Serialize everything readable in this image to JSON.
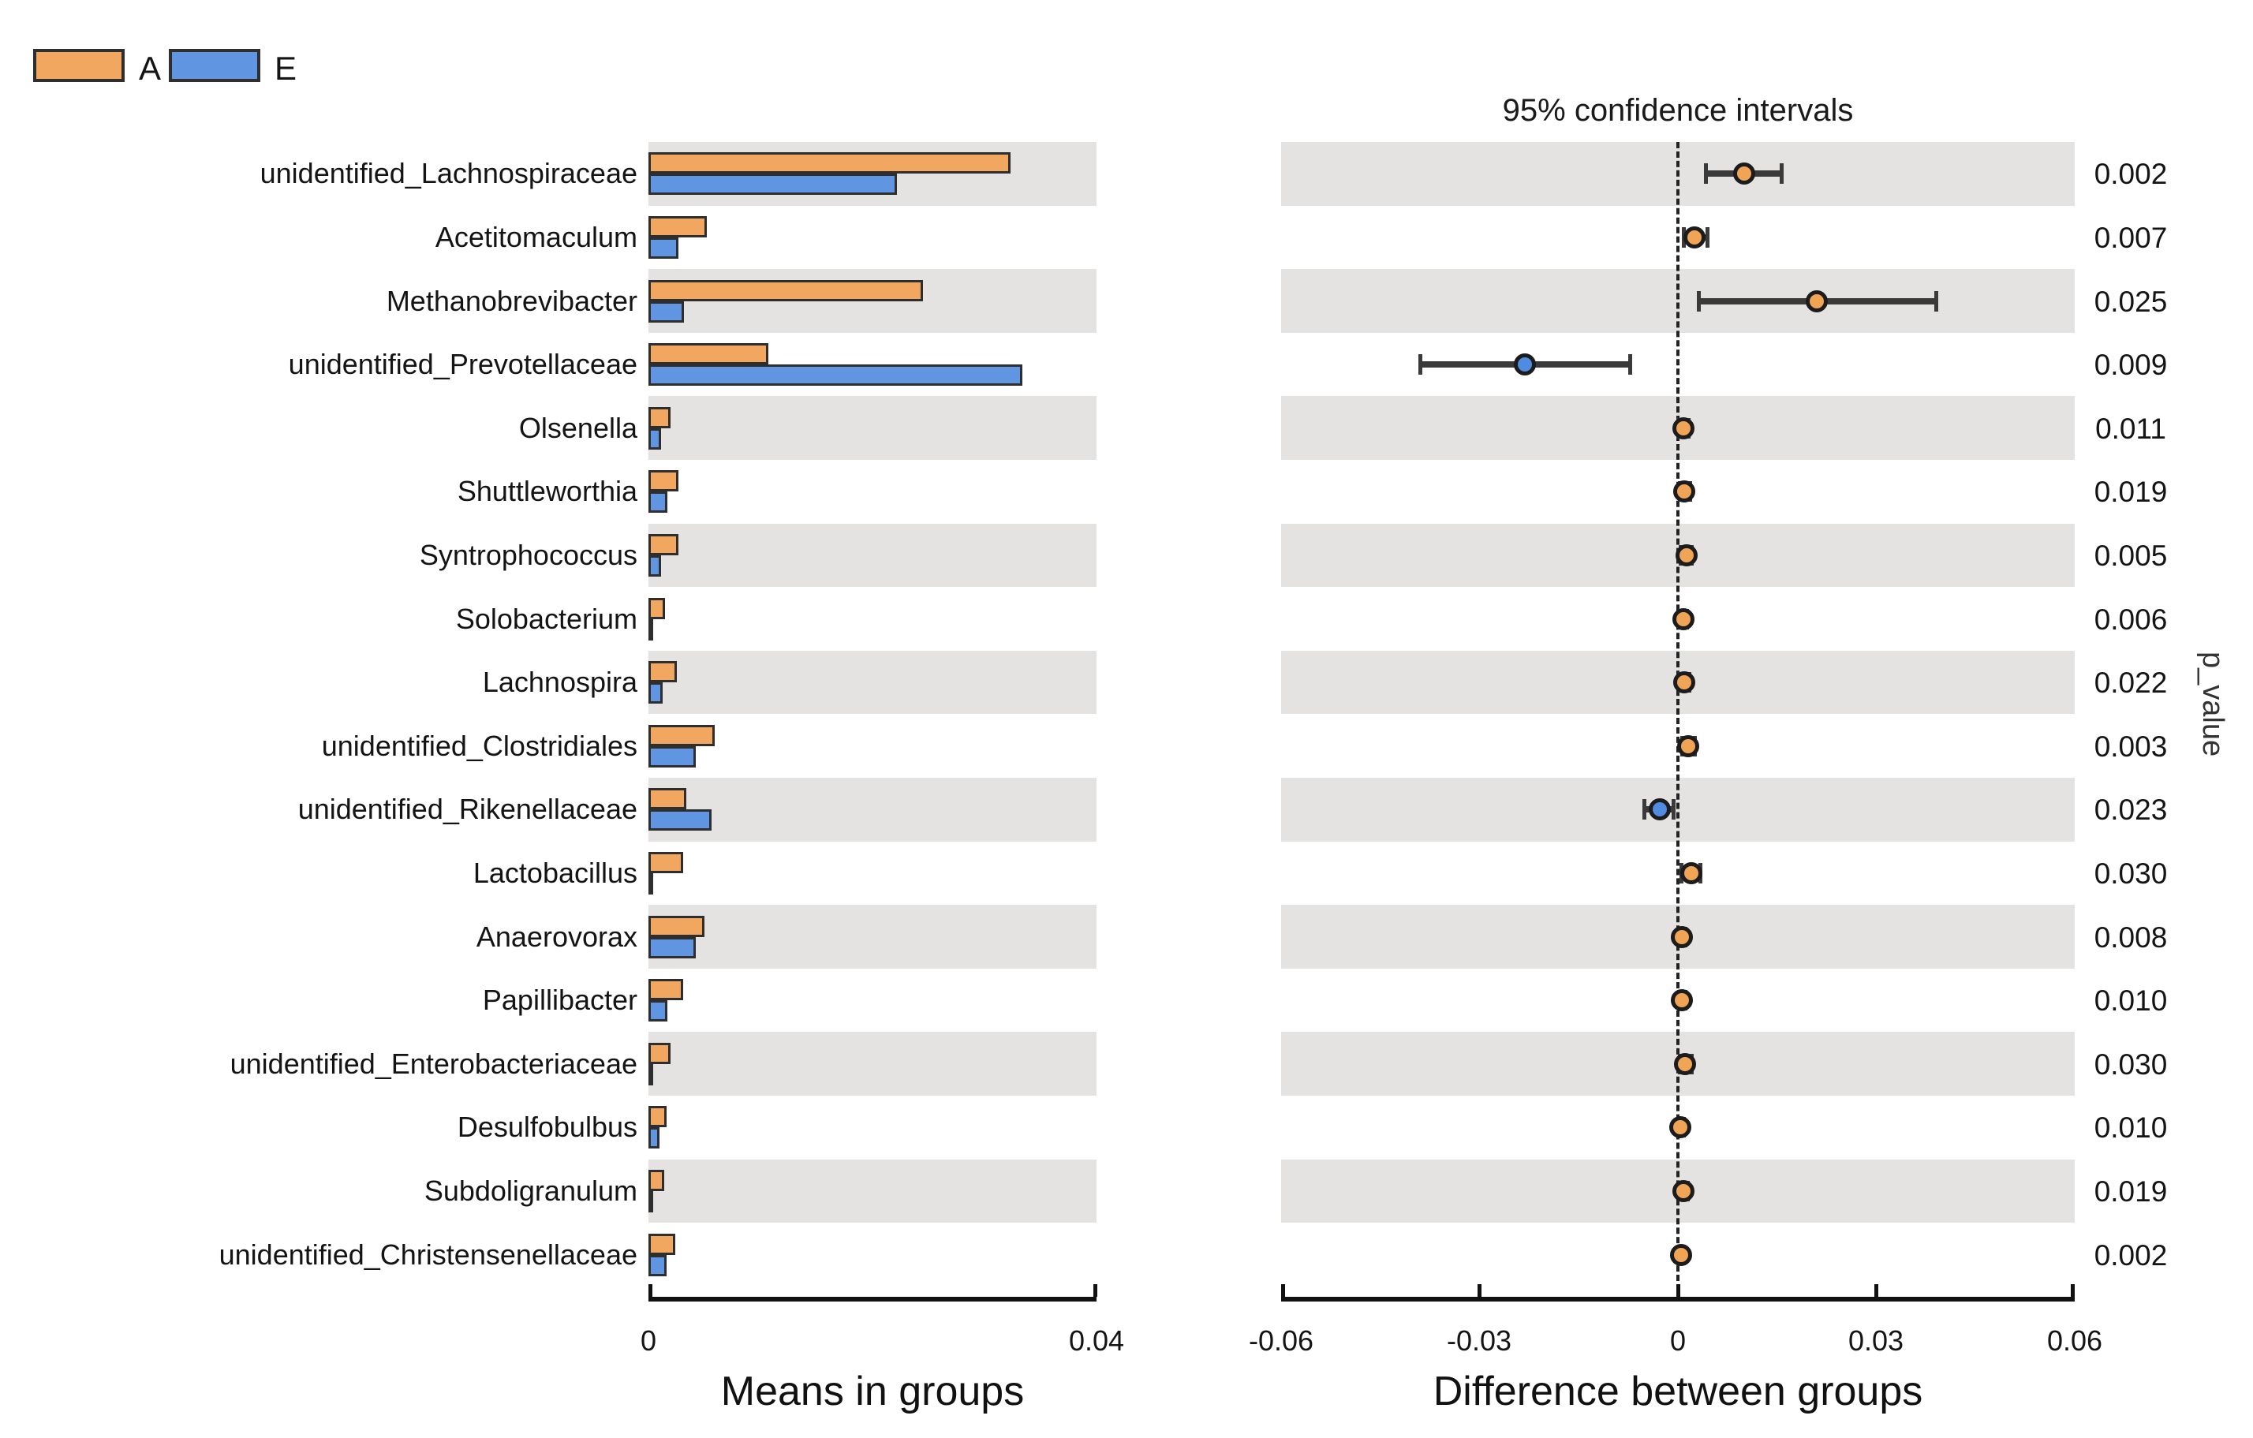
{
  "legend": {
    "groups": [
      {
        "label": "A",
        "color": "#F2A760"
      },
      {
        "label": "E",
        "color": "#6095E2"
      }
    ]
  },
  "right_panel_title": "95% confidence intervals",
  "p_axis_label": "p_value",
  "left_axis": {
    "title": "Means in groups",
    "tick_labels": [
      "0",
      "0.04"
    ]
  },
  "right_axis": {
    "title": "Difference between groups",
    "tick_labels": [
      "-0.06",
      "-0.03",
      "0",
      "0.03",
      "0.06"
    ]
  },
  "colors": {
    "group_A": "#F2A760",
    "group_E": "#6095E2",
    "dot_A": "#F0A455",
    "dot_E": "#4F8BE0",
    "stripe": "#E4E3E2",
    "whisker": "#3a3a3a",
    "bar_edge": "#2e2e2e"
  },
  "chart_data": {
    "type": "bar",
    "subtype": "extended-error-bar (grouped horizontal bars + 95% CI of difference + p-values)",
    "groups": [
      "A",
      "E"
    ],
    "panels": [
      {
        "name": "means",
        "title": "Means in groups",
        "xlim": [
          0,
          0.04
        ],
        "xticks": [
          0,
          0.04
        ]
      },
      {
        "name": "difference",
        "title": "Difference between groups",
        "header": "95% confidence intervals",
        "xlim": [
          -0.06,
          0.06
        ],
        "xticks": [
          -0.06,
          -0.03,
          0,
          0.03,
          0.06
        ],
        "zero_line": "dashed"
      }
    ],
    "p_value_axis_label": "p_value",
    "rows": [
      {
        "label": "unidentified_Lachnospiraceae",
        "mean_A": 0.0323,
        "mean_E": 0.0222,
        "diff": 0.01,
        "ci": [
          0.0042,
          0.0157
        ],
        "enriched": "A",
        "p_value": "0.002"
      },
      {
        "label": "Acetitomaculum",
        "mean_A": 0.0052,
        "mean_E": 0.0027,
        "diff": 0.0025,
        "ci": [
          0.0008,
          0.0045
        ],
        "enriched": "A",
        "p_value": "0.007"
      },
      {
        "label": "Methanobrevibacter",
        "mean_A": 0.0245,
        "mean_E": 0.0032,
        "diff": 0.021,
        "ci": [
          0.0031,
          0.0391
        ],
        "enriched": "A",
        "p_value": "0.025"
      },
      {
        "label": "unidentified_Prevotellaceae",
        "mean_A": 0.0107,
        "mean_E": 0.0334,
        "diff": -0.0231,
        "ci": [
          -0.039,
          -0.0072
        ],
        "enriched": "E",
        "p_value": "0.009"
      },
      {
        "label": "Olsenella",
        "mean_A": 0.002,
        "mean_E": 0.0011,
        "diff": 0.0008,
        "ci": [
          0.0,
          0.0017
        ],
        "enriched": "A",
        "p_value": "0.011"
      },
      {
        "label": "Shuttleworthia",
        "mean_A": 0.0027,
        "mean_E": 0.0017,
        "diff": 0.001,
        "ci": [
          0.0002,
          0.0019
        ],
        "enriched": "A",
        "p_value": "0.019"
      },
      {
        "label": "Syntrophococcus",
        "mean_A": 0.0027,
        "mean_E": 0.0011,
        "diff": 0.0013,
        "ci": [
          0.0004,
          0.0022
        ],
        "enriched": "A",
        "p_value": "0.005"
      },
      {
        "label": "Solobacterium",
        "mean_A": 0.0015,
        "mean_E": 0.0003,
        "diff": 0.0008,
        "ci": [
          0.0002,
          0.0014
        ],
        "enriched": "A",
        "p_value": "0.006"
      },
      {
        "label": "Lachnospira",
        "mean_A": 0.0025,
        "mean_E": 0.0013,
        "diff": 0.001,
        "ci": [
          0.0002,
          0.0018
        ],
        "enriched": "A",
        "p_value": "0.022"
      },
      {
        "label": "unidentified_Clostridiales",
        "mean_A": 0.0059,
        "mean_E": 0.0042,
        "diff": 0.0015,
        "ci": [
          0.0006,
          0.0026
        ],
        "enriched": "A",
        "p_value": "0.003"
      },
      {
        "label": "unidentified_Rikenellaceae",
        "mean_A": 0.0034,
        "mean_E": 0.0056,
        "diff": -0.0028,
        "ci": [
          -0.0051,
          -0.0006
        ],
        "enriched": "E",
        "p_value": "0.023"
      },
      {
        "label": "Lactobacillus",
        "mean_A": 0.0031,
        "mean_E": 0.0003,
        "diff": 0.002,
        "ci": [
          0.0005,
          0.0035
        ],
        "enriched": "A",
        "p_value": "0.030"
      },
      {
        "label": "Anaerovorax",
        "mean_A": 0.005,
        "mean_E": 0.0042,
        "diff": 0.0006,
        "ci": [
          0.0001,
          0.0012
        ],
        "enriched": "A",
        "p_value": "0.008"
      },
      {
        "label": "Papillibacter",
        "mean_A": 0.0031,
        "mean_E": 0.0017,
        "diff": 0.0006,
        "ci": [
          0.0001,
          0.0012
        ],
        "enriched": "A",
        "p_value": "0.010"
      },
      {
        "label": "unidentified_Enterobacteriaceae",
        "mean_A": 0.002,
        "mean_E": 0.0003,
        "diff": 0.0011,
        "ci": [
          0.0002,
          0.0021
        ],
        "enriched": "A",
        "p_value": "0.030"
      },
      {
        "label": "Desulfobulbus",
        "mean_A": 0.0016,
        "mean_E": 0.001,
        "diff": 0.0004,
        "ci": [
          0.0,
          0.0009
        ],
        "enriched": "A",
        "p_value": "0.010"
      },
      {
        "label": "Subdoligranulum",
        "mean_A": 0.0014,
        "mean_E": 0.0002,
        "diff": 0.0008,
        "ci": [
          0.0002,
          0.0015
        ],
        "enriched": "A",
        "p_value": "0.019"
      },
      {
        "label": "unidentified_Christensenellaceae",
        "mean_A": 0.0024,
        "mean_E": 0.0016,
        "diff": 0.0005,
        "ci": [
          0.0001,
          0.0009
        ],
        "enriched": "A",
        "p_value": "0.002"
      }
    ]
  }
}
